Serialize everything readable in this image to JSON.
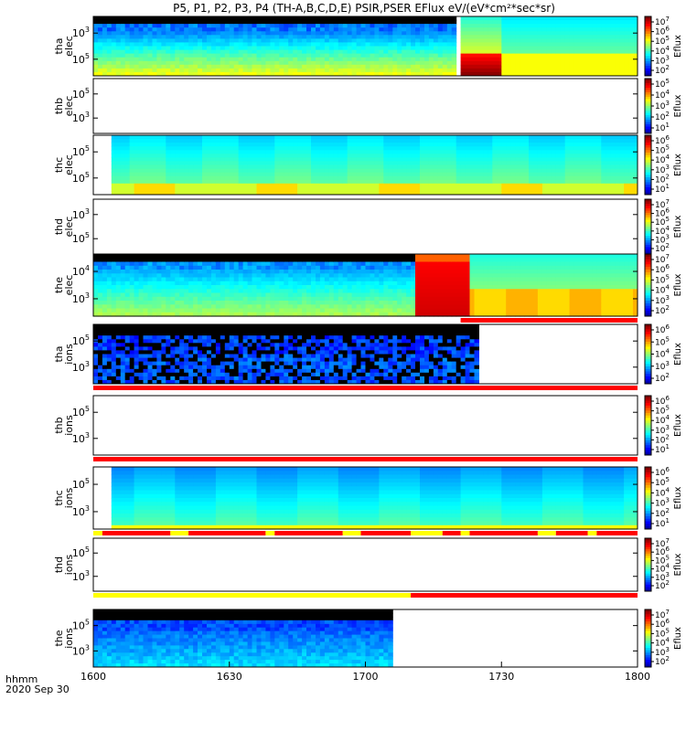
{
  "chart_data": {
    "type": "heatmap",
    "title": "P5, P1, P2, P3, P4 (TH-A,B,C,D,E) PSIR,PSER EFlux eV/(eV*cm²*sec*sr)",
    "x_tick_labels": [
      "1600",
      "1630",
      "1700",
      "1730",
      "1800"
    ],
    "x_label_line1": "hhmm",
    "x_label_line2": "2020 Sep 30",
    "xlim_minutes": [
      0,
      120
    ],
    "colorbar_label": "Eflux",
    "panels": [
      {
        "id": "tha-elec",
        "ylabel": [
          "tha",
          "elec"
        ],
        "yticks": [
          {
            "base": "10",
            "exp": "3"
          },
          {
            "base": "10",
            "exp": "5"
          }
        ],
        "cbar": {
          "ticks": [
            {
              "base": "10",
              "exp": "7"
            },
            {
              "base": "10",
              "exp": "6"
            },
            {
              "base": "10",
              "exp": "5"
            },
            {
              "base": "10",
              "exp": "4"
            },
            {
              "base": "10",
              "exp": "3"
            },
            {
              "base": "10",
              "exp": "2"
            }
          ]
        },
        "data_spans": [
          [
            0,
            80
          ],
          [
            81,
            120
          ]
        ],
        "mode_bar": null
      },
      {
        "id": "thb-elec",
        "ylabel": [
          "thb",
          "elec"
        ],
        "yticks": [
          {
            "base": "10",
            "exp": "5"
          },
          {
            "base": "10",
            "exp": "3"
          }
        ],
        "cbar": {
          "ticks": [
            {
              "base": "10",
              "exp": "5"
            },
            {
              "base": "10",
              "exp": "4"
            },
            {
              "base": "10",
              "exp": "3"
            },
            {
              "base": "10",
              "exp": "2"
            },
            {
              "base": "10",
              "exp": "1"
            }
          ]
        },
        "data_spans": [],
        "mode_bar": null
      },
      {
        "id": "thc-elec",
        "ylabel": [
          "thc",
          "elec"
        ],
        "yticks": [
          {
            "base": "10",
            "exp": "5"
          },
          {
            "base": "10",
            "exp": "5"
          }
        ],
        "cbar": {
          "ticks": [
            {
              "base": "10",
              "exp": "6"
            },
            {
              "base": "10",
              "exp": "5"
            },
            {
              "base": "10",
              "exp": "4"
            },
            {
              "base": "10",
              "exp": "3"
            },
            {
              "base": "10",
              "exp": "2"
            },
            {
              "base": "10",
              "exp": "1"
            }
          ]
        },
        "data_spans": [
          [
            4,
            120
          ]
        ],
        "mode_bar": null
      },
      {
        "id": "thd-elec",
        "ylabel": [
          "thd",
          "elec"
        ],
        "yticks": [
          {
            "base": "10",
            "exp": "3"
          },
          {
            "base": "10",
            "exp": "5"
          }
        ],
        "cbar": {
          "ticks": [
            {
              "base": "10",
              "exp": "7"
            },
            {
              "base": "10",
              "exp": "6"
            },
            {
              "base": "10",
              "exp": "5"
            },
            {
              "base": "10",
              "exp": "4"
            },
            {
              "base": "10",
              "exp": "3"
            },
            {
              "base": "10",
              "exp": "2"
            }
          ]
        },
        "data_spans": [],
        "mode_bar": null
      },
      {
        "id": "the-elec",
        "ylabel": [
          "the",
          "elec"
        ],
        "yticks": [
          {
            "base": "10",
            "exp": "4"
          },
          {
            "base": "10",
            "exp": "3"
          }
        ],
        "cbar": {
          "ticks": [
            {
              "base": "10",
              "exp": "7"
            },
            {
              "base": "10",
              "exp": "6"
            },
            {
              "base": "10",
              "exp": "5"
            },
            {
              "base": "10",
              "exp": "4"
            },
            {
              "base": "10",
              "exp": "3"
            },
            {
              "base": "10",
              "exp": "2"
            }
          ]
        },
        "data_spans": [
          [
            0,
            120
          ]
        ],
        "mode_bar": [
          {
            "from": 81,
            "to": 120,
            "color": "red"
          }
        ]
      },
      {
        "id": "tha-ions",
        "ylabel": [
          "tha",
          "ions"
        ],
        "yticks": [
          {
            "base": "10",
            "exp": "5"
          },
          {
            "base": "10",
            "exp": "3"
          }
        ],
        "cbar": {
          "ticks": [
            {
              "base": "10",
              "exp": "6"
            },
            {
              "base": "10",
              "exp": "5"
            },
            {
              "base": "10",
              "exp": "4"
            },
            {
              "base": "10",
              "exp": "3"
            },
            {
              "base": "10",
              "exp": "2"
            }
          ]
        },
        "data_spans": [
          [
            0,
            85
          ]
        ],
        "mode_bar": [
          {
            "from": 0,
            "to": 120,
            "color": "red"
          }
        ]
      },
      {
        "id": "thb-ions",
        "ylabel": [
          "thb",
          "ions"
        ],
        "yticks": [
          {
            "base": "10",
            "exp": "5"
          },
          {
            "base": "10",
            "exp": "3"
          }
        ],
        "cbar": {
          "ticks": [
            {
              "base": "10",
              "exp": "6"
            },
            {
              "base": "10",
              "exp": "5"
            },
            {
              "base": "10",
              "exp": "4"
            },
            {
              "base": "10",
              "exp": "3"
            },
            {
              "base": "10",
              "exp": "2"
            },
            {
              "base": "10",
              "exp": "1"
            }
          ]
        },
        "data_spans": [],
        "mode_bar": [
          {
            "from": 0,
            "to": 120,
            "color": "red"
          }
        ]
      },
      {
        "id": "thc-ions",
        "ylabel": [
          "thc",
          "ions"
        ],
        "yticks": [
          {
            "base": "10",
            "exp": "5"
          },
          {
            "base": "10",
            "exp": "3"
          }
        ],
        "cbar": {
          "ticks": [
            {
              "base": "10",
              "exp": "6"
            },
            {
              "base": "10",
              "exp": "5"
            },
            {
              "base": "10",
              "exp": "4"
            },
            {
              "base": "10",
              "exp": "3"
            },
            {
              "base": "10",
              "exp": "2"
            },
            {
              "base": "10",
              "exp": "1"
            }
          ]
        },
        "data_spans": [
          [
            4,
            120
          ]
        ],
        "mode_bar": [
          {
            "from": 0,
            "to": 2,
            "color": "yellow"
          },
          {
            "from": 2,
            "to": 17,
            "color": "red"
          },
          {
            "from": 17,
            "to": 21,
            "color": "yellow"
          },
          {
            "from": 21,
            "to": 38,
            "color": "red"
          },
          {
            "from": 38,
            "to": 40,
            "color": "yellow"
          },
          {
            "from": 40,
            "to": 55,
            "color": "red"
          },
          {
            "from": 55,
            "to": 59,
            "color": "yellow"
          },
          {
            "from": 59,
            "to": 70,
            "color": "red"
          },
          {
            "from": 70,
            "to": 77,
            "color": "yellow"
          },
          {
            "from": 77,
            "to": 81,
            "color": "red"
          },
          {
            "from": 81,
            "to": 83,
            "color": "yellow"
          },
          {
            "from": 83,
            "to": 98,
            "color": "red"
          },
          {
            "from": 98,
            "to": 102,
            "color": "yellow"
          },
          {
            "from": 102,
            "to": 109,
            "color": "red"
          },
          {
            "from": 109,
            "to": 111,
            "color": "yellow"
          },
          {
            "from": 111,
            "to": 120,
            "color": "red"
          }
        ]
      },
      {
        "id": "thd-ions",
        "ylabel": [
          "thd",
          "ions"
        ],
        "yticks": [
          {
            "base": "10",
            "exp": "5"
          },
          {
            "base": "10",
            "exp": "3"
          }
        ],
        "cbar": {
          "ticks": [
            {
              "base": "10",
              "exp": "7"
            },
            {
              "base": "10",
              "exp": "6"
            },
            {
              "base": "10",
              "exp": "5"
            },
            {
              "base": "10",
              "exp": "4"
            },
            {
              "base": "10",
              "exp": "3"
            },
            {
              "base": "10",
              "exp": "2"
            }
          ]
        },
        "data_spans": [],
        "mode_bar": [
          {
            "from": 0,
            "to": 70,
            "color": "yellow"
          },
          {
            "from": 70,
            "to": 120,
            "color": "red"
          }
        ]
      },
      {
        "id": "the-ions",
        "ylabel": [
          "the",
          "ions"
        ],
        "yticks": [
          {
            "base": "10",
            "exp": "5"
          },
          {
            "base": "10",
            "exp": "3"
          }
        ],
        "cbar": {
          "ticks": [
            {
              "base": "10",
              "exp": "7"
            },
            {
              "base": "10",
              "exp": "6"
            },
            {
              "base": "10",
              "exp": "5"
            },
            {
              "base": "10",
              "exp": "4"
            },
            {
              "base": "10",
              "exp": "3"
            },
            {
              "base": "10",
              "exp": "2"
            }
          ]
        },
        "data_spans": [
          [
            0,
            66
          ]
        ],
        "mode_bar": null
      }
    ]
  }
}
